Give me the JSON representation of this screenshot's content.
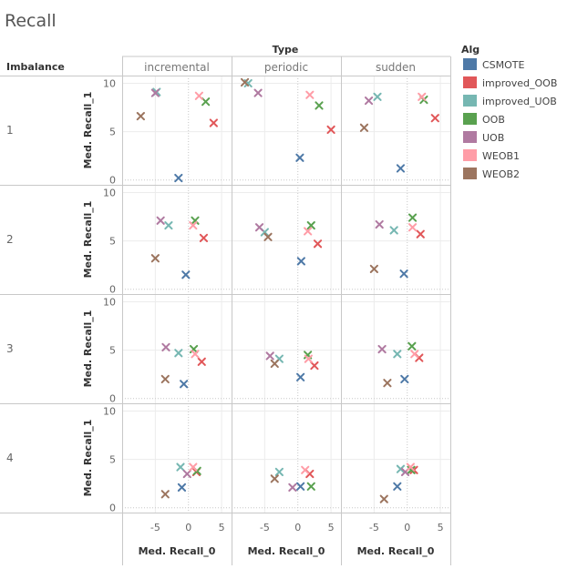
{
  "chart_data": {
    "type": "scatter",
    "title": "Recall",
    "column_field": "Type",
    "row_field": "Imbalance",
    "columns": [
      "incremental",
      "periodic",
      "sudden"
    ],
    "rows": [
      "1",
      "2",
      "3",
      "4"
    ],
    "xlabel": "Med. Recall_0",
    "ylabel": "Med. Recall_1",
    "xlim": [
      -10,
      6.5
    ],
    "ylim": [
      -0.5,
      10.8
    ],
    "xticks": [
      -5,
      0,
      5
    ],
    "xtick_labels": [
      "-5",
      "0",
      "5"
    ],
    "yticks": [
      0,
      5,
      10
    ],
    "ytick_labels": [
      "0",
      "5",
      "10"
    ],
    "grid": true,
    "legend": {
      "title": "Alg",
      "placement": "right",
      "entries": [
        {
          "name": "CSMOTE",
          "color": "#4e79a7"
        },
        {
          "name": "improved_OOB",
          "color": "#e15759"
        },
        {
          "name": "improved_UOB",
          "color": "#76b7b2"
        },
        {
          "name": "OOB",
          "color": "#59a14f"
        },
        {
          "name": "UOB",
          "color": "#b07aa1"
        },
        {
          "name": "WEOB1",
          "color": "#ff9da7"
        },
        {
          "name": "WEOB2",
          "color": "#9c755f"
        }
      ]
    },
    "marker": "x",
    "series": [
      {
        "name": "CSMOTE",
        "points": [
          {
            "row": "1",
            "col": "incremental",
            "x": -1.5,
            "y": 0.2
          },
          {
            "row": "1",
            "col": "periodic",
            "x": 0.3,
            "y": 2.3
          },
          {
            "row": "1",
            "col": "sudden",
            "x": -1.0,
            "y": 1.2
          },
          {
            "row": "2",
            "col": "incremental",
            "x": -0.4,
            "y": 1.5
          },
          {
            "row": "2",
            "col": "periodic",
            "x": 0.5,
            "y": 2.9
          },
          {
            "row": "2",
            "col": "sudden",
            "x": -0.5,
            "y": 1.6
          },
          {
            "row": "3",
            "col": "incremental",
            "x": -0.7,
            "y": 1.5
          },
          {
            "row": "3",
            "col": "periodic",
            "x": 0.4,
            "y": 2.2
          },
          {
            "row": "3",
            "col": "sudden",
            "x": -0.4,
            "y": 2.0
          },
          {
            "row": "4",
            "col": "incremental",
            "x": -1.0,
            "y": 2.1
          },
          {
            "row": "4",
            "col": "periodic",
            "x": 0.4,
            "y": 2.2
          },
          {
            "row": "4",
            "col": "sudden",
            "x": -1.5,
            "y": 2.2
          }
        ]
      },
      {
        "name": "improved_OOB",
        "points": [
          {
            "row": "1",
            "col": "incremental",
            "x": 3.8,
            "y": 5.9
          },
          {
            "row": "1",
            "col": "periodic",
            "x": 5.0,
            "y": 5.2
          },
          {
            "row": "1",
            "col": "sudden",
            "x": 4.2,
            "y": 6.4
          },
          {
            "row": "2",
            "col": "incremental",
            "x": 2.3,
            "y": 5.3
          },
          {
            "row": "2",
            "col": "periodic",
            "x": 3.0,
            "y": 4.7
          },
          {
            "row": "2",
            "col": "sudden",
            "x": 2.0,
            "y": 5.7
          },
          {
            "row": "3",
            "col": "incremental",
            "x": 2.0,
            "y": 3.8
          },
          {
            "row": "3",
            "col": "periodic",
            "x": 2.5,
            "y": 3.4
          },
          {
            "row": "3",
            "col": "sudden",
            "x": 1.8,
            "y": 4.2
          },
          {
            "row": "4",
            "col": "incremental",
            "x": 1.2,
            "y": 3.7
          },
          {
            "row": "4",
            "col": "periodic",
            "x": 1.8,
            "y": 3.5
          },
          {
            "row": "4",
            "col": "sudden",
            "x": 1.0,
            "y": 3.9
          }
        ]
      },
      {
        "name": "improved_UOB",
        "points": [
          {
            "row": "1",
            "col": "incremental",
            "x": -4.8,
            "y": 9.1
          },
          {
            "row": "1",
            "col": "periodic",
            "x": -7.5,
            "y": 10.0
          },
          {
            "row": "1",
            "col": "sudden",
            "x": -4.5,
            "y": 8.6
          },
          {
            "row": "2",
            "col": "incremental",
            "x": -3.0,
            "y": 6.6
          },
          {
            "row": "2",
            "col": "periodic",
            "x": -5.0,
            "y": 5.9
          },
          {
            "row": "2",
            "col": "sudden",
            "x": -2.0,
            "y": 6.1
          },
          {
            "row": "3",
            "col": "incremental",
            "x": -1.5,
            "y": 4.7
          },
          {
            "row": "3",
            "col": "periodic",
            "x": -2.8,
            "y": 4.1
          },
          {
            "row": "3",
            "col": "sudden",
            "x": -1.5,
            "y": 4.6
          },
          {
            "row": "4",
            "col": "incremental",
            "x": -1.2,
            "y": 4.2
          },
          {
            "row": "4",
            "col": "periodic",
            "x": -2.8,
            "y": 3.7
          },
          {
            "row": "4",
            "col": "sudden",
            "x": -1.0,
            "y": 4.0
          }
        ]
      },
      {
        "name": "OOB",
        "points": [
          {
            "row": "1",
            "col": "incremental",
            "x": 2.6,
            "y": 8.1
          },
          {
            "row": "1",
            "col": "periodic",
            "x": 3.2,
            "y": 7.7
          },
          {
            "row": "1",
            "col": "sudden",
            "x": 2.5,
            "y": 8.3
          },
          {
            "row": "2",
            "col": "incremental",
            "x": 1.0,
            "y": 7.1
          },
          {
            "row": "2",
            "col": "periodic",
            "x": 2.0,
            "y": 6.6
          },
          {
            "row": "2",
            "col": "sudden",
            "x": 0.8,
            "y": 7.4
          },
          {
            "row": "3",
            "col": "incremental",
            "x": 0.8,
            "y": 5.1
          },
          {
            "row": "3",
            "col": "periodic",
            "x": 1.5,
            "y": 4.5
          },
          {
            "row": "3",
            "col": "sudden",
            "x": 0.7,
            "y": 5.4
          },
          {
            "row": "4",
            "col": "incremental",
            "x": 1.3,
            "y": 3.8
          },
          {
            "row": "4",
            "col": "periodic",
            "x": 2.0,
            "y": 2.2
          },
          {
            "row": "4",
            "col": "sudden",
            "x": 0.6,
            "y": 3.9
          }
        ]
      },
      {
        "name": "UOB",
        "points": [
          {
            "row": "1",
            "col": "incremental",
            "x": -5.0,
            "y": 9.0
          },
          {
            "row": "1",
            "col": "periodic",
            "x": -6.0,
            "y": 9.0
          },
          {
            "row": "1",
            "col": "sudden",
            "x": -5.8,
            "y": 8.2
          },
          {
            "row": "2",
            "col": "incremental",
            "x": -4.2,
            "y": 7.1
          },
          {
            "row": "2",
            "col": "periodic",
            "x": -5.8,
            "y": 6.4
          },
          {
            "row": "2",
            "col": "sudden",
            "x": -4.2,
            "y": 6.7
          },
          {
            "row": "3",
            "col": "incremental",
            "x": -3.4,
            "y": 5.3
          },
          {
            "row": "3",
            "col": "periodic",
            "x": -4.2,
            "y": 4.4
          },
          {
            "row": "3",
            "col": "sudden",
            "x": -3.8,
            "y": 5.1
          },
          {
            "row": "4",
            "col": "incremental",
            "x": -0.2,
            "y": 3.5
          },
          {
            "row": "4",
            "col": "periodic",
            "x": -0.8,
            "y": 2.1
          },
          {
            "row": "4",
            "col": "sudden",
            "x": -0.3,
            "y": 3.7
          }
        ]
      },
      {
        "name": "WEOB1",
        "points": [
          {
            "row": "1",
            "col": "incremental",
            "x": 1.6,
            "y": 8.7
          },
          {
            "row": "1",
            "col": "periodic",
            "x": 1.8,
            "y": 8.8
          },
          {
            "row": "1",
            "col": "sudden",
            "x": 2.2,
            "y": 8.6
          },
          {
            "row": "2",
            "col": "incremental",
            "x": 0.7,
            "y": 6.6
          },
          {
            "row": "2",
            "col": "periodic",
            "x": 1.5,
            "y": 6.0
          },
          {
            "row": "2",
            "col": "sudden",
            "x": 0.8,
            "y": 6.4
          },
          {
            "row": "3",
            "col": "incremental",
            "x": 1.0,
            "y": 4.6
          },
          {
            "row": "3",
            "col": "periodic",
            "x": 1.6,
            "y": 4.1
          },
          {
            "row": "3",
            "col": "sudden",
            "x": 1.1,
            "y": 4.6
          },
          {
            "row": "4",
            "col": "incremental",
            "x": 0.7,
            "y": 4.2
          },
          {
            "row": "4",
            "col": "periodic",
            "x": 1.1,
            "y": 3.9
          },
          {
            "row": "4",
            "col": "sudden",
            "x": 0.5,
            "y": 4.2
          }
        ]
      },
      {
        "name": "WEOB2",
        "points": [
          {
            "row": "1",
            "col": "incremental",
            "x": -7.2,
            "y": 6.6
          },
          {
            "row": "1",
            "col": "periodic",
            "x": -8.0,
            "y": 10.1
          },
          {
            "row": "1",
            "col": "sudden",
            "x": -6.5,
            "y": 5.4
          },
          {
            "row": "2",
            "col": "incremental",
            "x": -5.0,
            "y": 3.2
          },
          {
            "row": "2",
            "col": "periodic",
            "x": -4.5,
            "y": 5.4
          },
          {
            "row": "2",
            "col": "sudden",
            "x": -5.0,
            "y": 2.1
          },
          {
            "row": "3",
            "col": "incremental",
            "x": -3.5,
            "y": 2.0
          },
          {
            "row": "3",
            "col": "periodic",
            "x": -3.5,
            "y": 3.6
          },
          {
            "row": "3",
            "col": "sudden",
            "x": -3.0,
            "y": 1.6
          },
          {
            "row": "4",
            "col": "incremental",
            "x": -3.5,
            "y": 1.4
          },
          {
            "row": "4",
            "col": "periodic",
            "x": -3.5,
            "y": 3.0
          },
          {
            "row": "4",
            "col": "sudden",
            "x": -3.5,
            "y": 0.9
          }
        ]
      }
    ]
  }
}
